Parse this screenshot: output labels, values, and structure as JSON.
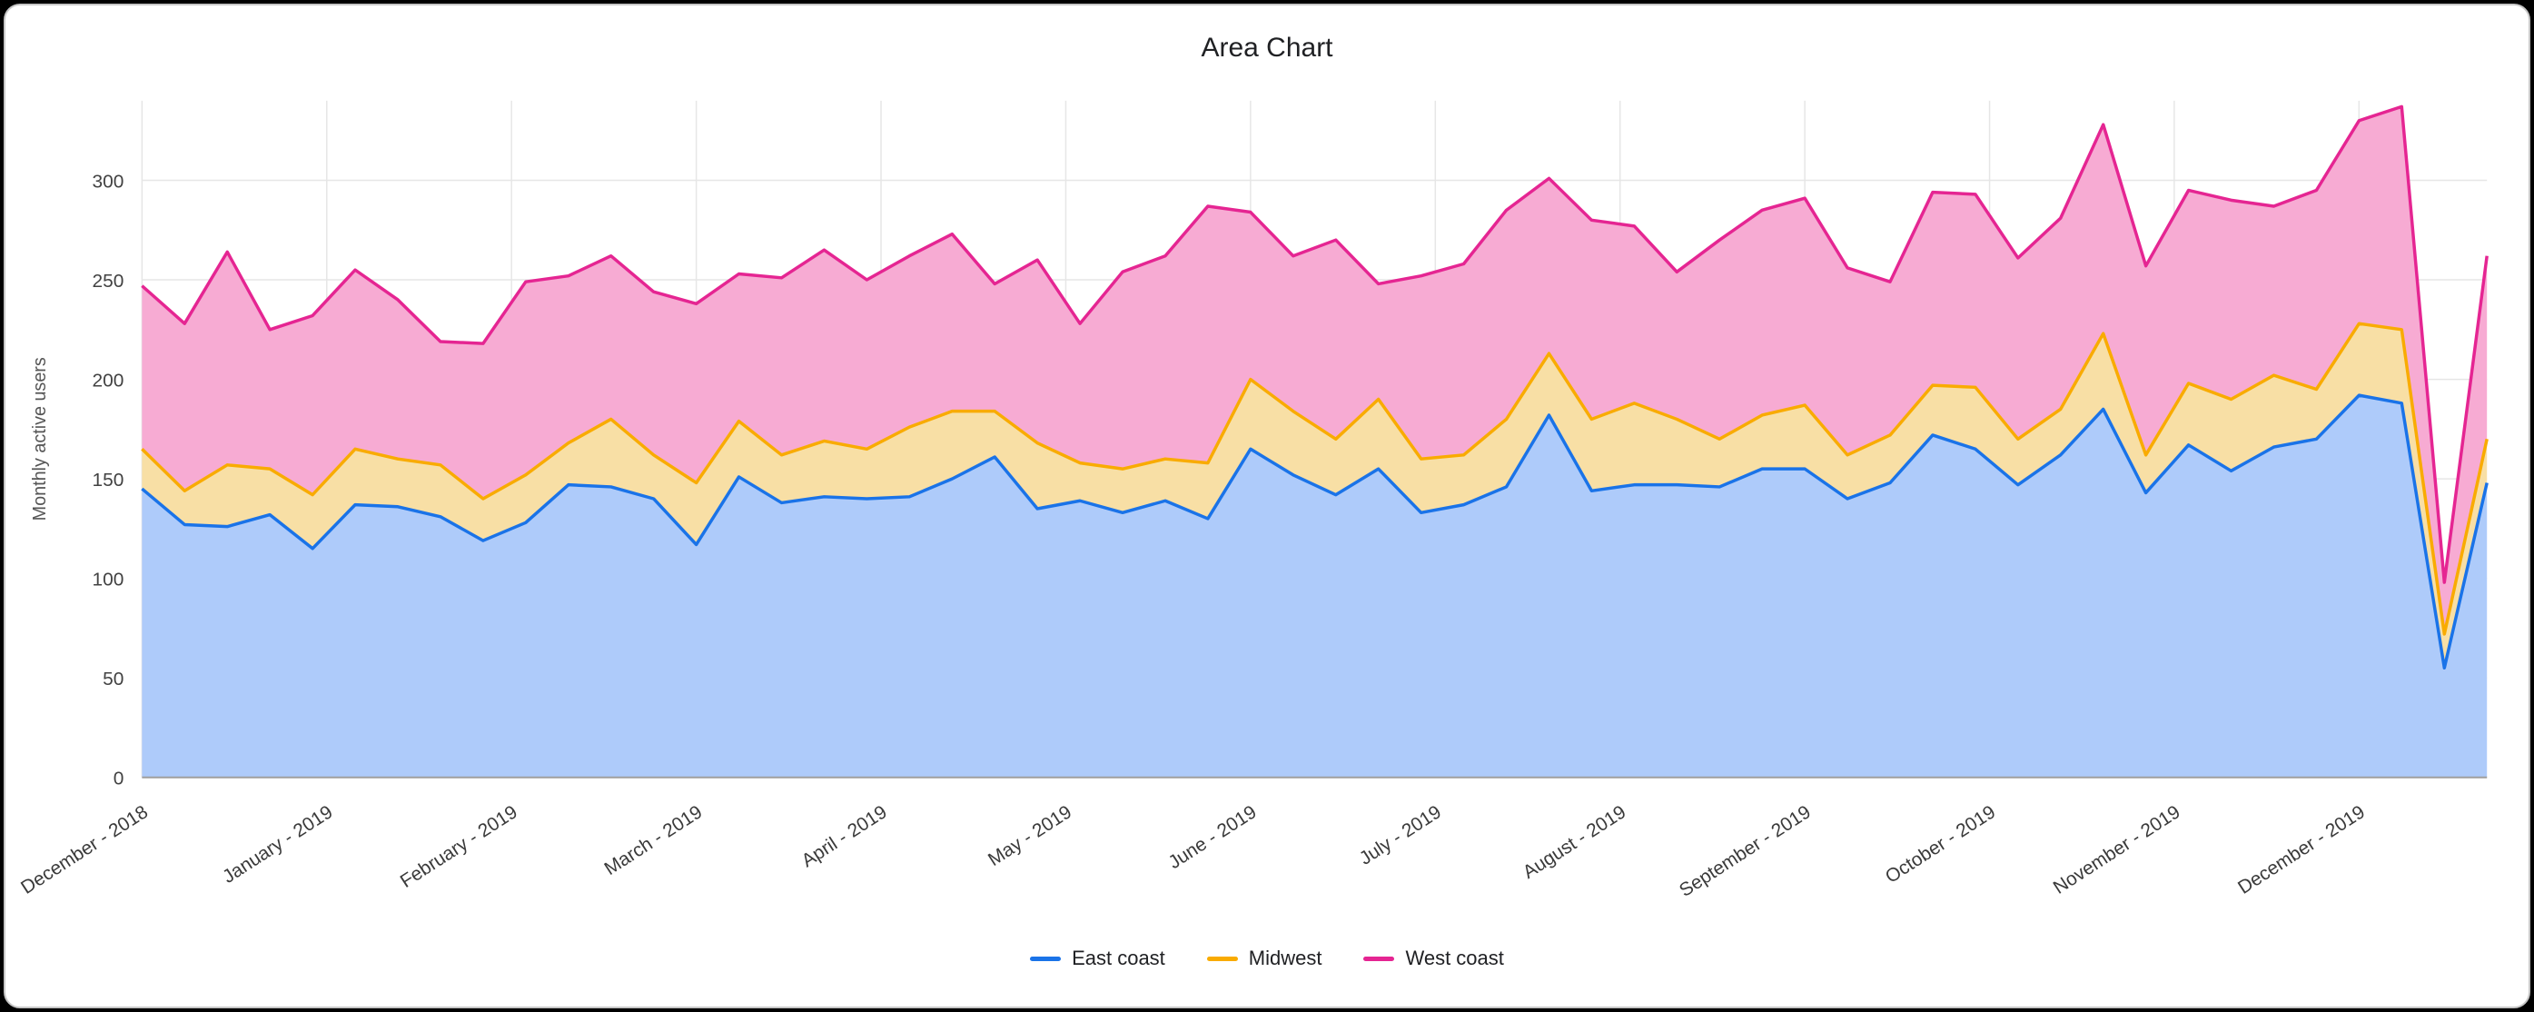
{
  "chart_data": {
    "type": "area",
    "stacked": true,
    "title": "Area Chart",
    "ylabel": "Monthly active users",
    "ylim": [
      0,
      340
    ],
    "yticks": [
      0,
      50,
      100,
      150,
      200,
      250,
      300
    ],
    "grid": true,
    "legend_position": "bottom",
    "points_per_month": 4.3333,
    "x_tick_labels": [
      "December - 2018",
      "January - 2019",
      "February - 2019",
      "March - 2019",
      "April - 2019",
      "May - 2019",
      "June - 2019",
      "July - 2019",
      "August - 2019",
      "September - 2019",
      "October - 2019",
      "November - 2019",
      "December - 2019"
    ],
    "series": [
      {
        "name": "East coast",
        "line_color": "#1a73e8",
        "fill_color": "#aecbfa",
        "values": [
          145,
          127,
          126,
          132,
          115,
          137,
          136,
          131,
          119,
          128,
          147,
          146,
          140,
          117,
          151,
          138,
          141,
          140,
          141,
          150,
          161,
          135,
          139,
          133,
          139,
          130,
          165,
          152,
          142,
          155,
          133,
          137,
          146,
          182,
          144,
          147,
          147,
          146,
          155,
          155,
          140,
          148,
          172,
          165,
          147,
          162,
          185,
          143,
          167,
          154,
          166,
          170,
          192,
          188,
          55,
          148
        ]
      },
      {
        "name": "Midwest",
        "line_color": "#f9ab00",
        "fill_color": "#f8dfa5",
        "values": [
          20,
          17,
          31,
          23,
          27,
          28,
          24,
          26,
          21,
          24,
          21,
          34,
          22,
          31,
          28,
          24,
          28,
          25,
          35,
          34,
          23,
          33,
          19,
          22,
          21,
          28,
          35,
          32,
          28,
          35,
          27,
          25,
          34,
          31,
          36,
          41,
          33,
          24,
          27,
          32,
          22,
          24,
          25,
          31,
          23,
          23,
          38,
          19,
          31,
          36,
          36,
          25,
          36,
          37,
          17,
          22
        ]
      },
      {
        "name": "West coast",
        "line_color": "#e52592",
        "fill_color": "#f7abd3",
        "values": [
          82,
          84,
          107,
          70,
          90,
          90,
          80,
          62,
          78,
          97,
          84,
          82,
          82,
          90,
          74,
          89,
          96,
          85,
          86,
          89,
          64,
          92,
          70,
          99,
          102,
          129,
          84,
          78,
          100,
          58,
          92,
          96,
          105,
          88,
          100,
          89,
          74,
          100,
          103,
          104,
          94,
          77,
          97,
          97,
          91,
          96,
          105,
          95,
          97,
          100,
          85,
          100,
          102,
          112,
          26,
          92
        ]
      }
    ]
  }
}
